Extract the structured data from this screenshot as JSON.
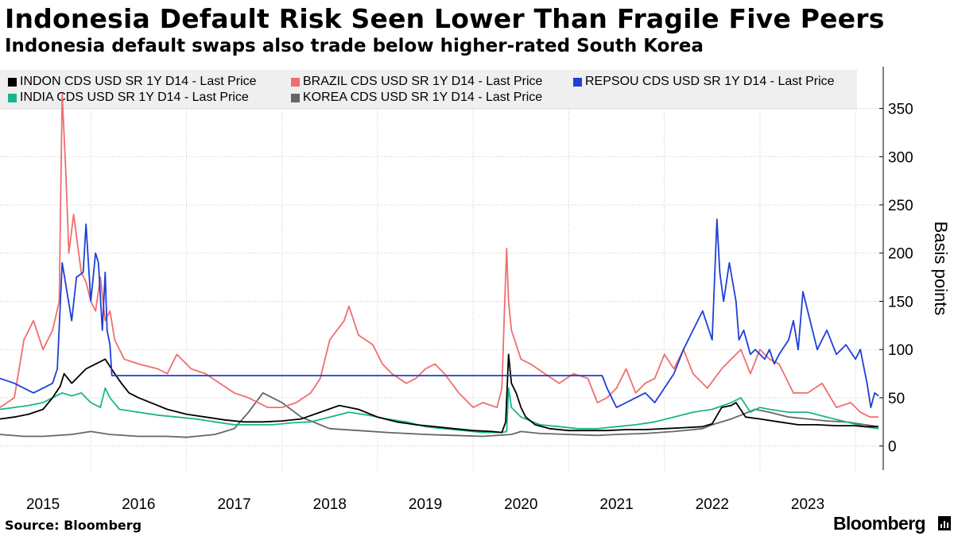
{
  "header": {
    "title": "Indonesia Default Risk Seen Lower Than Fragile Five Peers",
    "subtitle": "Indonesia default swaps also trade below higher-rated South Korea"
  },
  "footer": {
    "source": "Source: Bloomberg",
    "brand": "Bloomberg"
  },
  "chart_data": {
    "type": "line",
    "ylabel": "Basis points",
    "ylim": [
      -25,
      390
    ],
    "xlim": [
      2014.55,
      2023.74
    ],
    "yticks": [
      0,
      50,
      100,
      150,
      200,
      250,
      300,
      350
    ],
    "xtick_labels": [
      "2015",
      "2016",
      "2017",
      "2018",
      "2019",
      "2020",
      "2021",
      "2022",
      "2023"
    ],
    "xtick_label_positions": [
      2015.0,
      2016.0,
      2017.0,
      2018.0,
      2019.0,
      2020.0,
      2021.0,
      2022.0,
      2023.0
    ],
    "year_boundaries": [
      2015.0,
      2016.0,
      2017.0,
      2018.0,
      2019.0,
      2020.0,
      2021.0,
      2022.0,
      2023.0
    ],
    "grid": true,
    "legend_position": "top",
    "series": [
      {
        "name": "INDON CDS USD SR 1Y D14 - Last Price",
        "color": "#000000",
        "x": [
          2014.55,
          2014.7,
          2014.85,
          2015.0,
          2015.1,
          2015.18,
          2015.22,
          2015.3,
          2015.45,
          2015.55,
          2015.65,
          2015.75,
          2015.82,
          2015.9,
          2016.0,
          2016.15,
          2016.3,
          2016.5,
          2016.7,
          2016.9,
          2017.1,
          2017.3,
          2017.5,
          2017.7,
          2017.9,
          2018.1,
          2018.3,
          2018.5,
          2018.7,
          2018.9,
          2019.1,
          2019.3,
          2019.5,
          2019.7,
          2019.8,
          2019.84,
          2019.87,
          2019.9,
          2019.95,
          2020.0,
          2020.05,
          2020.15,
          2020.3,
          2020.5,
          2020.7,
          2020.9,
          2021.1,
          2021.3,
          2021.5,
          2021.7,
          2021.9,
          2022.0,
          2022.1,
          2022.2,
          2022.25,
          2022.35,
          2022.5,
          2022.7,
          2022.9,
          2023.1,
          2023.3,
          2023.5,
          2023.6,
          2023.74
        ],
        "values": [
          28,
          30,
          33,
          38,
          50,
          62,
          75,
          65,
          80,
          85,
          90,
          75,
          65,
          55,
          50,
          44,
          38,
          33,
          30,
          27,
          25,
          25,
          26,
          28,
          35,
          42,
          38,
          30,
          25,
          22,
          20,
          18,
          16,
          15,
          14,
          25,
          95,
          65,
          55,
          40,
          30,
          22,
          18,
          16,
          16,
          16,
          17,
          17,
          18,
          19,
          20,
          23,
          40,
          42,
          45,
          30,
          28,
          25,
          22,
          22,
          21,
          21,
          20,
          20
        ]
      },
      {
        "name": "BRAZIL CDS USD SR 1Y D14 - Last Price",
        "color": "#f06e6e",
        "x": [
          2014.55,
          2014.7,
          2014.8,
          2014.9,
          2015.0,
          2015.1,
          2015.17,
          2015.2,
          2015.24,
          2015.27,
          2015.32,
          2015.4,
          2015.45,
          2015.5,
          2015.55,
          2015.6,
          2015.65,
          2015.7,
          2015.75,
          2015.85,
          2016.0,
          2016.2,
          2016.3,
          2016.4,
          2016.55,
          2016.7,
          2016.85,
          2017.0,
          2017.15,
          2017.25,
          2017.35,
          2017.5,
          2017.65,
          2017.8,
          2017.9,
          2018.0,
          2018.15,
          2018.2,
          2018.3,
          2018.45,
          2018.55,
          2018.65,
          2018.8,
          2018.9,
          2019.0,
          2019.1,
          2019.2,
          2019.35,
          2019.5,
          2019.6,
          2019.75,
          2019.8,
          2019.83,
          2019.85,
          2019.87,
          2019.9,
          2020.0,
          2020.1,
          2020.25,
          2020.4,
          2020.55,
          2020.7,
          2020.8,
          2020.9,
          2021.0,
          2021.1,
          2021.2,
          2021.3,
          2021.4,
          2021.5,
          2021.6,
          2021.7,
          2021.8,
          2021.95,
          2022.1,
          2022.2,
          2022.3,
          2022.4,
          2022.5,
          2022.6,
          2022.7,
          2022.85,
          2023.0,
          2023.15,
          2023.3,
          2023.45,
          2023.55,
          2023.65,
          2023.74
        ],
        "values": [
          40,
          50,
          110,
          130,
          100,
          120,
          150,
          365,
          280,
          200,
          240,
          180,
          170,
          150,
          140,
          175,
          130,
          140,
          110,
          90,
          85,
          80,
          75,
          95,
          80,
          75,
          65,
          55,
          50,
          45,
          40,
          40,
          45,
          55,
          70,
          110,
          130,
          145,
          115,
          105,
          85,
          75,
          65,
          70,
          80,
          85,
          75,
          55,
          40,
          45,
          40,
          60,
          150,
          205,
          150,
          120,
          90,
          85,
          75,
          65,
          75,
          70,
          45,
          50,
          60,
          80,
          55,
          65,
          70,
          95,
          80,
          100,
          75,
          60,
          80,
          90,
          100,
          75,
          100,
          90,
          85,
          55,
          55,
          65,
          40,
          45,
          35,
          30,
          30
        ]
      },
      {
        "name": "REPSOU CDS USD SR 1Y D14 - Last Price",
        "color": "#1f3fd6",
        "x": [
          2014.55,
          2014.7,
          2014.8,
          2014.9,
          2015.0,
          2015.1,
          2015.15,
          2015.2,
          2015.25,
          2015.3,
          2015.35,
          2015.42,
          2015.45,
          2015.5,
          2015.55,
          2015.58,
          2015.62,
          2015.65,
          2015.67,
          2015.7,
          2015.72,
          2020.85,
          2020.9,
          2021.0,
          2021.1,
          2021.2,
          2021.3,
          2021.4,
          2021.5,
          2021.6,
          2021.7,
          2021.8,
          2021.9,
          2022.0,
          2022.05,
          2022.08,
          2022.12,
          2022.18,
          2022.25,
          2022.28,
          2022.33,
          2022.4,
          2022.45,
          2022.55,
          2022.6,
          2022.65,
          2022.7,
          2022.8,
          2022.85,
          2022.9,
          2022.95,
          2023.0,
          2023.1,
          2023.2,
          2023.3,
          2023.4,
          2023.5,
          2023.55,
          2023.62,
          2023.66,
          2023.7,
          2023.74
        ],
        "values": [
          70,
          65,
          60,
          55,
          60,
          65,
          80,
          190,
          160,
          130,
          175,
          180,
          230,
          150,
          200,
          190,
          120,
          180,
          120,
          105,
          73,
          73,
          60,
          40,
          45,
          50,
          55,
          45,
          60,
          75,
          100,
          120,
          140,
          110,
          235,
          180,
          150,
          190,
          150,
          110,
          120,
          95,
          100,
          90,
          100,
          85,
          95,
          110,
          130,
          100,
          160,
          140,
          100,
          120,
          95,
          105,
          90,
          100,
          65,
          40,
          55,
          52
        ]
      },
      {
        "name": "INDIA CDS USD SR 1Y D14 - Last Price",
        "color": "#1ab58d",
        "x": [
          2014.55,
          2014.7,
          2014.85,
          2015.0,
          2015.1,
          2015.2,
          2015.3,
          2015.4,
          2015.5,
          2015.6,
          2015.65,
          2015.7,
          2015.8,
          2016.0,
          2016.2,
          2016.4,
          2016.6,
          2016.8,
          2017.0,
          2017.2,
          2017.4,
          2017.6,
          2017.8,
          2018.0,
          2018.2,
          2018.4,
          2018.6,
          2018.8,
          2019.0,
          2019.2,
          2019.4,
          2019.6,
          2019.8,
          2019.85,
          2019.87,
          2019.9,
          2020.0,
          2020.2,
          2020.4,
          2020.6,
          2020.8,
          2021.0,
          2021.2,
          2021.4,
          2021.6,
          2021.8,
          2022.0,
          2022.2,
          2022.3,
          2022.4,
          2022.5,
          2022.6,
          2022.8,
          2023.0,
          2023.2,
          2023.4,
          2023.6,
          2023.74
        ],
        "values": [
          38,
          40,
          42,
          45,
          50,
          55,
          52,
          55,
          45,
          40,
          60,
          50,
          38,
          35,
          32,
          30,
          28,
          25,
          22,
          22,
          22,
          24,
          25,
          30,
          35,
          32,
          28,
          25,
          20,
          18,
          16,
          14,
          14,
          15,
          60,
          40,
          30,
          22,
          20,
          18,
          18,
          20,
          22,
          25,
          30,
          35,
          38,
          45,
          50,
          35,
          40,
          38,
          35,
          35,
          30,
          25,
          20,
          18
        ]
      },
      {
        "name": "KOREA CDS USD SR 1Y D14 - Last Price",
        "color": "#666666",
        "x": [
          2014.55,
          2014.8,
          2015.0,
          2015.3,
          2015.5,
          2015.7,
          2016.0,
          2016.3,
          2016.5,
          2016.8,
          2017.0,
          2017.15,
          2017.3,
          2017.5,
          2017.7,
          2018.0,
          2018.3,
          2018.6,
          2019.0,
          2019.3,
          2019.6,
          2019.9,
          2020.0,
          2020.2,
          2020.5,
          2020.8,
          2021.0,
          2021.3,
          2021.6,
          2021.9,
          2022.0,
          2022.2,
          2022.3,
          2022.45,
          2022.6,
          2022.8,
          2023.0,
          2023.2,
          2023.4,
          2023.6,
          2023.74
        ],
        "values": [
          12,
          10,
          10,
          12,
          15,
          12,
          10,
          10,
          9,
          12,
          18,
          35,
          55,
          45,
          30,
          18,
          16,
          14,
          12,
          11,
          10,
          12,
          15,
          13,
          12,
          11,
          12,
          13,
          15,
          18,
          22,
          28,
          32,
          38,
          35,
          30,
          28,
          26,
          25,
          22,
          20
        ]
      }
    ]
  }
}
